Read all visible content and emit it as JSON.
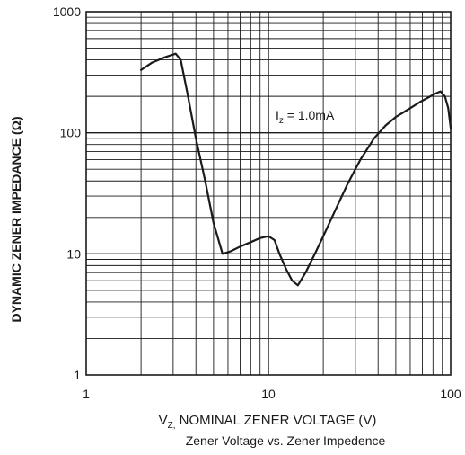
{
  "chart_data": {
    "type": "line",
    "caption": "Zener Voltage vs. Zener Impedence",
    "xlabel": {
      "prefix": "V",
      "subscript": "Z,",
      "rest": " NOMINAL ZENER VOLTAGE (V)"
    },
    "ylabel": "DYNAMIC ZENER IMPEDANCE (Ω)",
    "x_scale": "log",
    "y_scale": "log",
    "xlim": [
      1,
      100
    ],
    "ylim": [
      1,
      1000
    ],
    "x_ticks": [
      1,
      10,
      100
    ],
    "x_tick_labels": [
      "1",
      "10",
      "100"
    ],
    "y_ticks": [
      1,
      10,
      100,
      1000
    ],
    "y_tick_labels": [
      "1",
      "10",
      "100",
      "1000"
    ],
    "grid": true,
    "annotation": {
      "prefix": "I",
      "subscript": "z",
      "rest": " = 1.0mA"
    },
    "series": [
      {
        "x": [
          2.0,
          2.3,
          2.7,
          3.1,
          3.3,
          3.6,
          4.0,
          4.5,
          5.0,
          5.6,
          6.2,
          7.0,
          8.0,
          9.0,
          10.0,
          10.8,
          11.5,
          12.5,
          13.5,
          14.5,
          16.0,
          18.0,
          20.0,
          23.0,
          27.0,
          32.0,
          38.0,
          44.0,
          50.0,
          56.0,
          62.0,
          68.0,
          75.0,
          82.0,
          88.0,
          93.0,
          97.0,
          100.0
        ],
        "y": [
          330,
          380,
          420,
          450,
          400,
          210,
          90,
          40,
          18,
          10,
          10.5,
          11.5,
          12.5,
          13.5,
          14,
          13,
          10,
          7.5,
          6,
          5.5,
          7,
          10,
          14,
          22,
          37,
          60,
          90,
          115,
          135,
          150,
          165,
          180,
          195,
          210,
          220,
          200,
          160,
          110
        ]
      }
    ]
  }
}
